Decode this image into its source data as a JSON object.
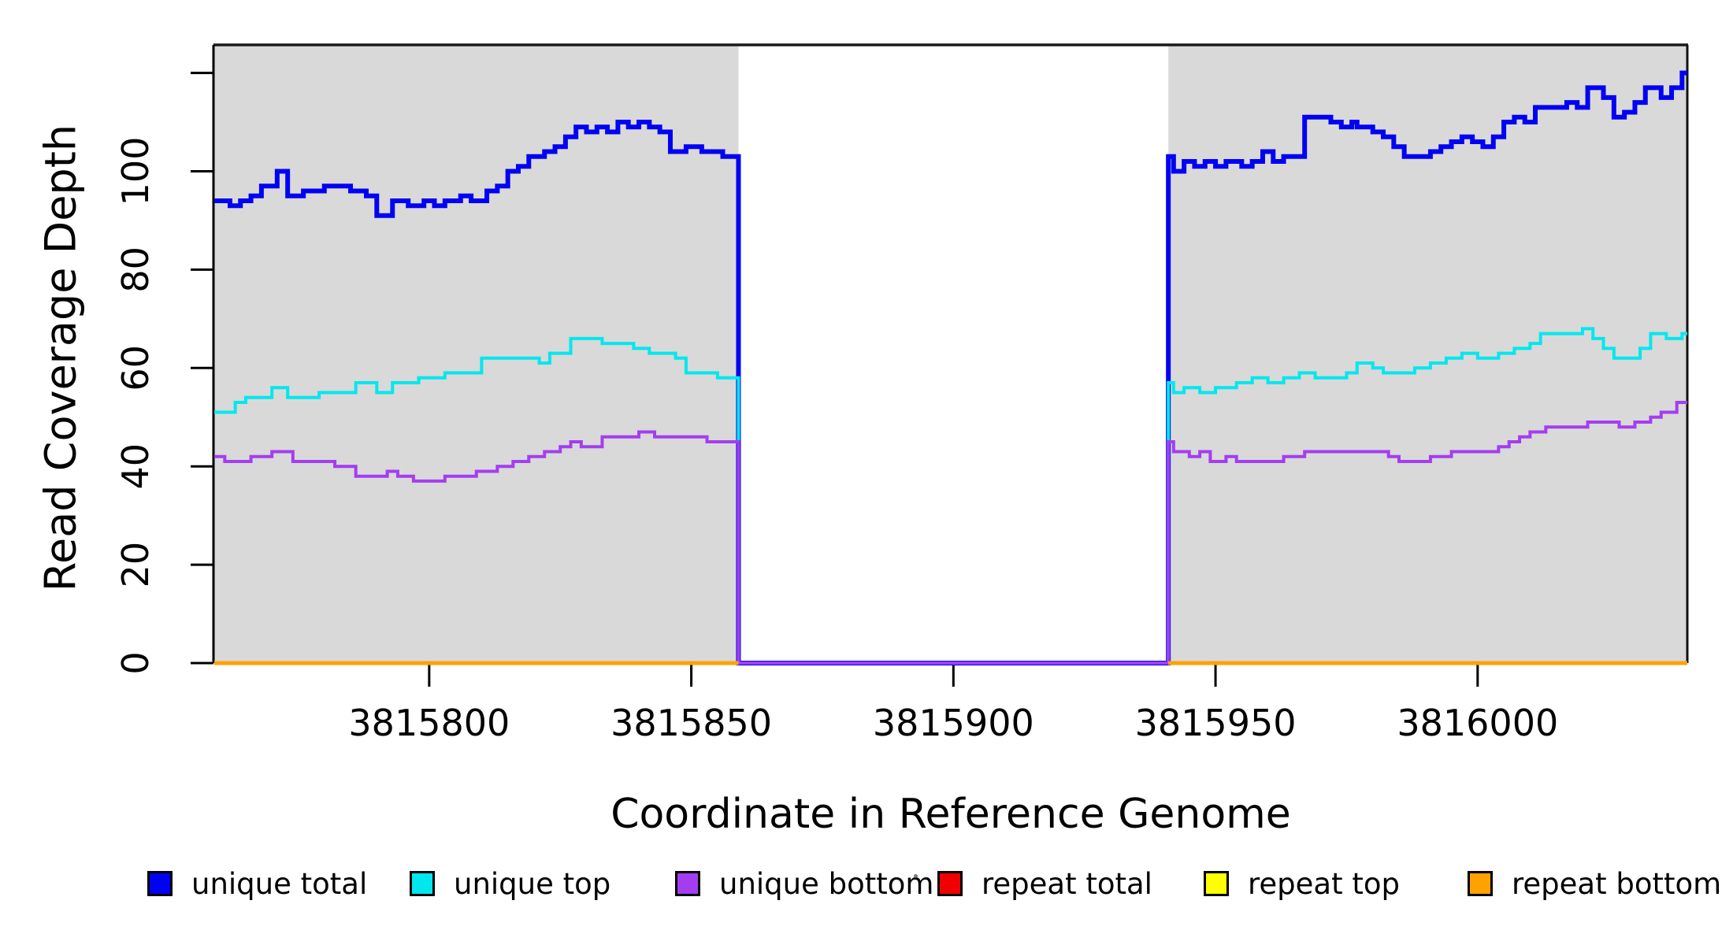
{
  "chart_data": {
    "type": "line",
    "subtype": "step",
    "title": "",
    "xlabel": "Coordinate in Reference Genome",
    "ylabel": "Read Coverage Depth",
    "xlim": [
      3815759,
      3816040
    ],
    "ylim": [
      0,
      126
    ],
    "grid": false,
    "legend_position": "bottom",
    "x_ticks": {
      "values": [
        3815800,
        3815850,
        3815900,
        3815950,
        3816000
      ],
      "labels": [
        "3815800",
        "3815850",
        "3815900",
        "3815950",
        "3816000"
      ]
    },
    "y_ticks": {
      "values": [
        0,
        20,
        40,
        60,
        80,
        100
      ],
      "labels": [
        "0",
        "20",
        "40",
        "60",
        "80",
        "100"
      ],
      "unlabeled_tick": 120
    },
    "background_regions": {
      "color": "#D9D9D9",
      "ranges": [
        [
          3815759,
          3815859
        ],
        [
          3815941,
          3816040
        ]
      ]
    },
    "gap": [
      3815859,
      3815941
    ],
    "axis_color": "#000000",
    "series": [
      {
        "name": "unique total",
        "color": "#0202F2",
        "lwd": 6,
        "segments": [
          [
            [
              3815759,
              94
            ],
            [
              3815762,
              93
            ],
            [
              3815764,
              94
            ],
            [
              3815766,
              95
            ],
            [
              3815768,
              97
            ],
            [
              3815771,
              100
            ],
            [
              3815773,
              95
            ],
            [
              3815776,
              96
            ],
            [
              3815780,
              97
            ],
            [
              3815785,
              96
            ],
            [
              3815788,
              95
            ],
            [
              3815790,
              91
            ],
            [
              3815793,
              94
            ],
            [
              3815796,
              93
            ],
            [
              3815799,
              94
            ],
            [
              3815801,
              93
            ],
            [
              3815803,
              94
            ],
            [
              3815806,
              95
            ],
            [
              3815808,
              94
            ],
            [
              3815811,
              96
            ],
            [
              3815813,
              97
            ],
            [
              3815815,
              100
            ],
            [
              3815817,
              101
            ],
            [
              3815819,
              103
            ],
            [
              3815822,
              104
            ],
            [
              3815824,
              105
            ],
            [
              3815826,
              107
            ],
            [
              3815828,
              109
            ],
            [
              3815830,
              108
            ],
            [
              3815832,
              109
            ],
            [
              3815834,
              108
            ],
            [
              3815836,
              110
            ],
            [
              3815838,
              109
            ],
            [
              3815840,
              110
            ],
            [
              3815842,
              109
            ],
            [
              3815844,
              108
            ],
            [
              3815846,
              104
            ],
            [
              3815849,
              105
            ],
            [
              3815852,
              104
            ],
            [
              3815856,
              103
            ],
            [
              3815859,
              0
            ],
            [
              3815941,
              103
            ],
            [
              3815942,
              100
            ],
            [
              3815944,
              102
            ],
            [
              3815946,
              101
            ],
            [
              3815948,
              102
            ],
            [
              3815950,
              101
            ],
            [
              3815952,
              102
            ],
            [
              3815955,
              101
            ],
            [
              3815957,
              102
            ],
            [
              3815959,
              104
            ],
            [
              3815961,
              102
            ],
            [
              3815963,
              103
            ],
            [
              3815967,
              111
            ],
            [
              3815972,
              110
            ],
            [
              3815974,
              109
            ],
            [
              3815976,
              110
            ],
            [
              3815977,
              109
            ],
            [
              3815980,
              108
            ],
            [
              3815982,
              107
            ],
            [
              3815984,
              105
            ],
            [
              3815986,
              103
            ],
            [
              3815991,
              104
            ],
            [
              3815993,
              105
            ],
            [
              3815995,
              106
            ],
            [
              3815997,
              107
            ],
            [
              3815999,
              106
            ],
            [
              3816001,
              105
            ],
            [
              3816003,
              107
            ],
            [
              3816005,
              110
            ],
            [
              3816007,
              111
            ],
            [
              3816009,
              110
            ],
            [
              3816011,
              113
            ],
            [
              3816017,
              114
            ],
            [
              3816019,
              113
            ],
            [
              3816021,
              117
            ],
            [
              3816024,
              115
            ],
            [
              3816026,
              111
            ],
            [
              3816028,
              112
            ],
            [
              3816030,
              114
            ],
            [
              3816032,
              117
            ],
            [
              3816035,
              115
            ],
            [
              3816037,
              117
            ],
            [
              3816039,
              120
            ]
          ]
        ]
      },
      {
        "name": "unique top",
        "color": "#00E8EE",
        "lwd": 4,
        "segments": [
          [
            [
              3815759,
              51
            ],
            [
              3815763,
              53
            ],
            [
              3815765,
              54
            ],
            [
              3815770,
              56
            ],
            [
              3815773,
              54
            ],
            [
              3815779,
              55
            ],
            [
              3815786,
              57
            ],
            [
              3815790,
              55
            ],
            [
              3815793,
              57
            ],
            [
              3815798,
              58
            ],
            [
              3815803,
              59
            ],
            [
              3815810,
              62
            ],
            [
              3815821,
              61
            ],
            [
              3815823,
              63
            ],
            [
              3815827,
              66
            ],
            [
              3815833,
              65
            ],
            [
              3815839,
              64
            ],
            [
              3815842,
              63
            ],
            [
              3815847,
              62
            ],
            [
              3815849,
              59
            ],
            [
              3815855,
              58
            ],
            [
              3815859,
              0
            ],
            [
              3815941,
              57
            ],
            [
              3815942,
              55
            ],
            [
              3815944,
              56
            ],
            [
              3815947,
              55
            ],
            [
              3815950,
              56
            ],
            [
              3815954,
              57
            ],
            [
              3815957,
              58
            ],
            [
              3815960,
              57
            ],
            [
              3815963,
              58
            ],
            [
              3815966,
              59
            ],
            [
              3815969,
              58
            ],
            [
              3815975,
              59
            ],
            [
              3815977,
              61
            ],
            [
              3815980,
              60
            ],
            [
              3815982,
              59
            ],
            [
              3815988,
              60
            ],
            [
              3815991,
              61
            ],
            [
              3815994,
              62
            ],
            [
              3815997,
              63
            ],
            [
              3816000,
              62
            ],
            [
              3816004,
              63
            ],
            [
              3816007,
              64
            ],
            [
              3816010,
              65
            ],
            [
              3816012,
              67
            ],
            [
              3816020,
              68
            ],
            [
              3816022,
              66
            ],
            [
              3816024,
              64
            ],
            [
              3816026,
              62
            ],
            [
              3816031,
              64
            ],
            [
              3816033,
              67
            ],
            [
              3816036,
              66
            ],
            [
              3816039,
              67
            ]
          ]
        ]
      },
      {
        "name": "unique bottom",
        "color": "#A43DF0",
        "lwd": 4,
        "segments": [
          [
            [
              3815759,
              42
            ],
            [
              3815761,
              41
            ],
            [
              3815766,
              42
            ],
            [
              3815770,
              43
            ],
            [
              3815774,
              41
            ],
            [
              3815782,
              40
            ],
            [
              3815786,
              38
            ],
            [
              3815792,
              39
            ],
            [
              3815794,
              38
            ],
            [
              3815797,
              37
            ],
            [
              3815803,
              38
            ],
            [
              3815809,
              39
            ],
            [
              3815813,
              40
            ],
            [
              3815816,
              41
            ],
            [
              3815819,
              42
            ],
            [
              3815822,
              43
            ],
            [
              3815825,
              44
            ],
            [
              3815827,
              45
            ],
            [
              3815829,
              44
            ],
            [
              3815833,
              46
            ],
            [
              3815840,
              47
            ],
            [
              3815843,
              46
            ],
            [
              3815853,
              45
            ],
            [
              3815859,
              0
            ],
            [
              3815941,
              45
            ],
            [
              3815942,
              43
            ],
            [
              3815945,
              42
            ],
            [
              3815947,
              43
            ],
            [
              3815949,
              41
            ],
            [
              3815952,
              42
            ],
            [
              3815954,
              41
            ],
            [
              3815963,
              42
            ],
            [
              3815967,
              43
            ],
            [
              3815983,
              42
            ],
            [
              3815985,
              41
            ],
            [
              3815991,
              42
            ],
            [
              3815995,
              43
            ],
            [
              3816004,
              44
            ],
            [
              3816006,
              45
            ],
            [
              3816008,
              46
            ],
            [
              3816010,
              47
            ],
            [
              3816013,
              48
            ],
            [
              3816021,
              49
            ],
            [
              3816027,
              48
            ],
            [
              3816030,
              49
            ],
            [
              3816033,
              50
            ],
            [
              3816035,
              51
            ],
            [
              3816038,
              53
            ]
          ]
        ]
      },
      {
        "name": "repeat total",
        "color": "#F00000",
        "lwd": 4,
        "segments": [
          [
            [
              3815759,
              0
            ],
            [
              3815859,
              0
            ]
          ],
          [
            [
              3815941,
              0
            ],
            [
              3816040,
              0
            ]
          ]
        ]
      },
      {
        "name": "repeat top",
        "color": "#FFFF00",
        "lwd": 4,
        "segments": [
          [
            [
              3815759,
              0
            ],
            [
              3815859,
              0
            ]
          ],
          [
            [
              3815941,
              0
            ],
            [
              3816040,
              0
            ]
          ]
        ]
      },
      {
        "name": "repeat bottom",
        "color": "#FFA200",
        "lwd": 5,
        "segments": [
          [
            [
              3815759,
              0
            ],
            [
              3815859,
              0
            ]
          ],
          [
            [
              3815941,
              0
            ],
            [
              3816040,
              0
            ]
          ]
        ]
      }
    ]
  },
  "legend": {
    "items": [
      {
        "label": "unique total",
        "color": "#0202F2"
      },
      {
        "label": "unique top",
        "color": "#00E8EE"
      },
      {
        "label": "unique bottom",
        "color": "#A43DF0"
      },
      {
        "label": "repeat total",
        "color": "#F00000"
      },
      {
        "label": "repeat top",
        "color": "#FFFF00"
      },
      {
        "label": "repeat bottom",
        "color": "#FFA200"
      }
    ]
  },
  "colors": {
    "background": "#FFFFFF",
    "panel": "#D9D9D9",
    "axis": "#000000"
  }
}
